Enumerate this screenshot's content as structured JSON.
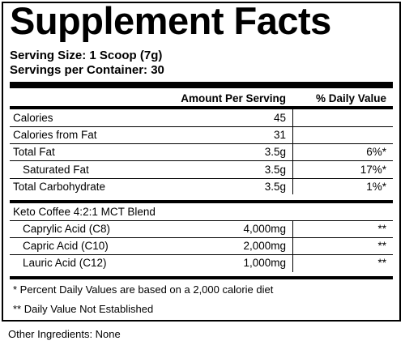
{
  "title": "Supplement Facts",
  "serving_size": "Serving Size: 1 Scoop (7g)",
  "servings_per_container": "Servings per Container: 30",
  "header": {
    "amount": "Amount Per Serving",
    "daily_value": "% Daily Value"
  },
  "rows": [
    {
      "label": "Calories",
      "amount": "45",
      "dv": ""
    },
    {
      "label": "Calories from Fat",
      "amount": "31",
      "dv": ""
    },
    {
      "label": "Total Fat",
      "amount": "3.5g",
      "dv": "6%*"
    },
    {
      "label": "Saturated Fat",
      "amount": "3.5g",
      "dv": "17%*"
    },
    {
      "label": "Total Carbohydrate",
      "amount": "3.5g",
      "dv": "1%*"
    }
  ],
  "blend": {
    "name": "Keto Coffee 4:2:1 MCT Blend",
    "items": [
      {
        "label": "Caprylic Acid (C8)",
        "amount": "4,000mg",
        "dv": "**"
      },
      {
        "label": "Capric Acid (C10)",
        "amount": "2,000mg",
        "dv": "**"
      },
      {
        "label": "Lauric Acid (C12)",
        "amount": "1,000mg",
        "dv": "**"
      }
    ]
  },
  "footnotes": [
    "* Percent Daily Values are based on a 2,000 calorie diet",
    "** Daily Value Not Established"
  ],
  "other_ingredients": "Other Ingredients: None"
}
